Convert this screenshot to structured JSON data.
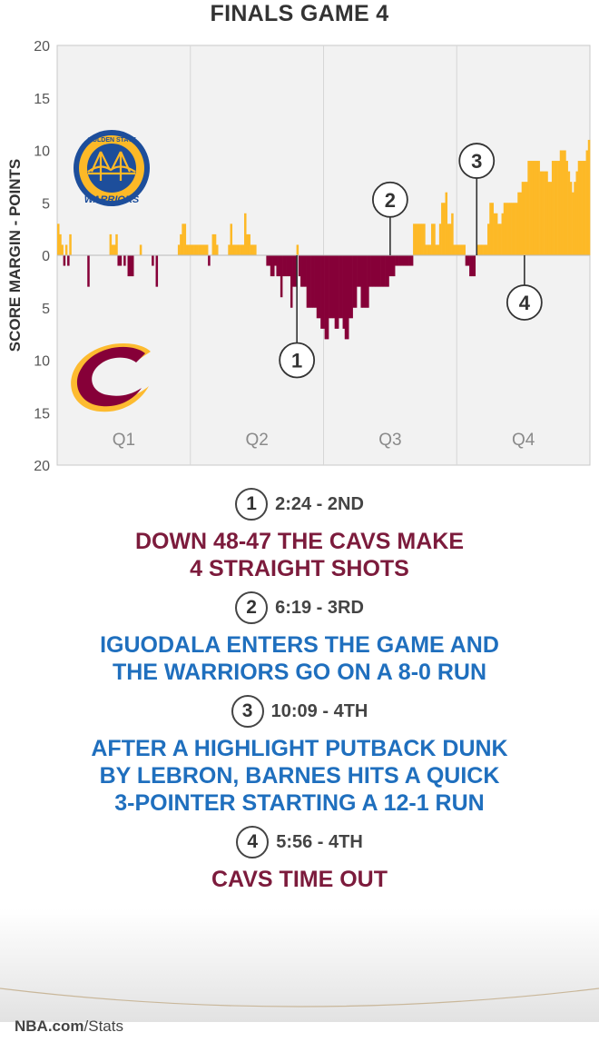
{
  "title": "FINALS GAME 4",
  "chart_data": {
    "type": "bar",
    "ylabel": "SCORE MARGIN - POINTS",
    "ylim": [
      -20,
      20
    ],
    "y_ticks": [
      {
        "value": 20,
        "label": "20"
      },
      {
        "value": 15,
        "label": "15"
      },
      {
        "value": 10,
        "label": "10"
      },
      {
        "value": 5,
        "label": "5"
      },
      {
        "value": 0,
        "label": "0"
      },
      {
        "value": -5,
        "label": "5"
      },
      {
        "value": -10,
        "label": "10"
      },
      {
        "value": -15,
        "label": "15"
      },
      {
        "value": -20,
        "label": "20"
      }
    ],
    "x_unit": "game minutes",
    "xlim": [
      0,
      48
    ],
    "quarters": [
      "Q1",
      "Q2",
      "Q3",
      "Q4"
    ],
    "positive_color": "#fdb927",
    "negative_color": "#860038",
    "values": [
      3,
      2,
      1,
      -1,
      1,
      -1,
      2,
      0,
      0,
      0,
      0,
      0,
      0,
      0,
      0,
      -3,
      0,
      0,
      0,
      0,
      0,
      0,
      0,
      0,
      0,
      0,
      2,
      1,
      1,
      2,
      -1,
      -1,
      0,
      -1,
      0,
      -2,
      -2,
      -2,
      0,
      0,
      0,
      1,
      0,
      0,
      0,
      0,
      0,
      -1,
      0,
      -3,
      0,
      0,
      0,
      0,
      0,
      0,
      0,
      0,
      0,
      0,
      1,
      2,
      3,
      3,
      1,
      1,
      1,
      1,
      1,
      1,
      1,
      1,
      1,
      1,
      1,
      -1,
      0,
      2,
      2,
      1,
      0,
      0,
      0,
      0,
      0,
      1,
      3,
      1,
      1,
      1,
      1,
      1,
      1,
      4,
      2,
      2,
      1,
      1,
      1,
      0,
      0,
      0,
      0,
      0,
      -1,
      -1,
      -2,
      -2,
      -1,
      -2,
      -2,
      -4,
      -2,
      -2,
      -2,
      -2,
      -5,
      -3,
      -3,
      1,
      -2,
      -3,
      -3,
      -3,
      -5,
      -5,
      -5,
      -5,
      -5,
      -6,
      -6,
      -7,
      -7,
      -8,
      -8,
      -6,
      -6,
      -6,
      -7,
      -7,
      -6,
      -6,
      -7,
      -8,
      -8,
      -6,
      -6,
      -5,
      -5,
      -3,
      -3,
      -5,
      -5,
      -5,
      -5,
      -3,
      -3,
      -3,
      -3,
      -3,
      -3,
      -3,
      -3,
      -3,
      -3,
      -2,
      -2,
      -2,
      -1,
      -1,
      -1,
      -1,
      -1,
      -1,
      -1,
      -1,
      -1,
      3,
      3,
      3,
      3,
      3,
      3,
      1,
      1,
      1,
      3,
      3,
      1,
      1,
      3,
      5,
      5,
      6,
      3,
      3,
      4,
      1,
      1,
      1,
      1,
      1,
      1,
      -1,
      -1,
      -2,
      -2,
      -2,
      0,
      1,
      1,
      1,
      1,
      1,
      3,
      5,
      5,
      4,
      4,
      3,
      3,
      4,
      5,
      5,
      5,
      5,
      5,
      5,
      5,
      6,
      6,
      7,
      7,
      7,
      9,
      9,
      9,
      9,
      9,
      9,
      8,
      8,
      8,
      8,
      7,
      7,
      9,
      9,
      9,
      9,
      10,
      10,
      10,
      9,
      8,
      7,
      6,
      7,
      8,
      9,
      9,
      9,
      9,
      10,
      11
    ],
    "markers": [
      {
        "label": "1",
        "time_min": 21.6,
        "side": "below"
      },
      {
        "label": "2",
        "time_min": 30.0,
        "side": "above"
      },
      {
        "label": "3",
        "time_min": 37.8,
        "side": "above"
      },
      {
        "label": "4",
        "time_min": 42.1,
        "side": "below"
      }
    ]
  },
  "events": [
    {
      "num": "1",
      "time": "2:24 - 2ND",
      "team": "cavs",
      "lines": [
        "DOWN 48-47 THE CAVS MAKE",
        "4 STRAIGHT SHOTS"
      ]
    },
    {
      "num": "2",
      "time": "6:19 - 3RD",
      "team": "gsw",
      "lines": [
        "IGUODALA ENTERS THE GAME AND",
        "THE WARRIORS GO ON A 8-0 RUN"
      ]
    },
    {
      "num": "3",
      "time": "10:09 - 4TH",
      "team": "gsw",
      "lines": [
        "AFTER A HIGHLIGHT PUTBACK DUNK",
        "BY LEBRON, BARNES HITS A QUICK",
        "3-POINTER STARTING A 12-1 RUN"
      ]
    },
    {
      "num": "4",
      "time": "5:56 - 4TH",
      "team": "cavs",
      "lines": [
        "CAVS TIME OUT"
      ]
    }
  ],
  "logos": {
    "gsw": {
      "text_top": "GOLDEN STATE",
      "text_bottom": "WARRIORS",
      "primary": "#1d4e9b",
      "secondary": "#fdb927"
    },
    "cavs": {
      "primary": "#860038",
      "secondary": "#fdbb30"
    }
  },
  "source": {
    "bold": "NBA.com",
    "rest": "/Stats"
  }
}
